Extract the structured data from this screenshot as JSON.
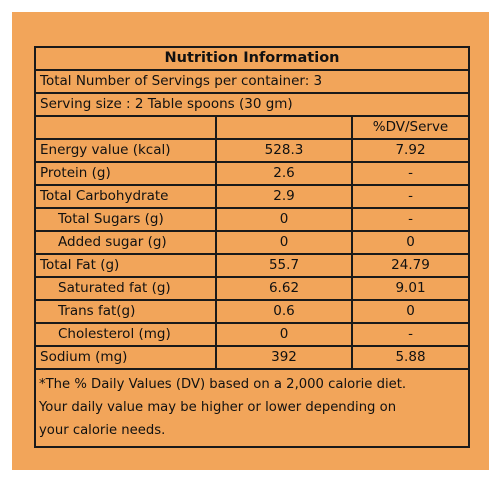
{
  "title": "Nutrition Information",
  "servings_per_container": "Total Number of Servings per container: 3",
  "serving_size": "Serving size :  2 Table spoons (30 gm)",
  "header": {
    "nutrient": "",
    "value": "",
    "dv": "%DV/Serve"
  },
  "rows": [
    {
      "nutrient": "Energy value (kcal)",
      "value": "528.3",
      "dv": "7.92",
      "sub": false
    },
    {
      "nutrient": "Protein (g)",
      "value": "2.6",
      "dv": "-",
      "sub": false
    },
    {
      "nutrient": "Total Carbohydrate",
      "value": "2.9",
      "dv": "-",
      "sub": false
    },
    {
      "nutrient": "Total Sugars (g)",
      "value": "0",
      "dv": "-",
      "sub": true
    },
    {
      "nutrient": "Added sugar (g)",
      "value": "0",
      "dv": "0",
      "sub": true
    },
    {
      "nutrient": "Total Fat (g)",
      "value": "55.7",
      "dv": "24.79",
      "sub": false
    },
    {
      "nutrient": "Saturated fat (g)",
      "value": "6.62",
      "dv": "9.01",
      "sub": true
    },
    {
      "nutrient": "Trans fat(g)",
      "value": "0.6",
      "dv": "0",
      "sub": true
    },
    {
      "nutrient": "Cholesterol (mg)",
      "value": "0",
      "dv": "-",
      "sub": true
    },
    {
      "nutrient": "Sodium (mg)",
      "value": "392",
      "dv": "5.88",
      "sub": false
    }
  ],
  "footnote": [
    "*The % Daily Values (DV) based on a 2,000 calorie diet.",
    "Your daily value may be higher or lower depending on",
    "your calorie needs."
  ],
  "colors": {
    "background": "#f2a55a",
    "border": "#1a1a1a"
  }
}
